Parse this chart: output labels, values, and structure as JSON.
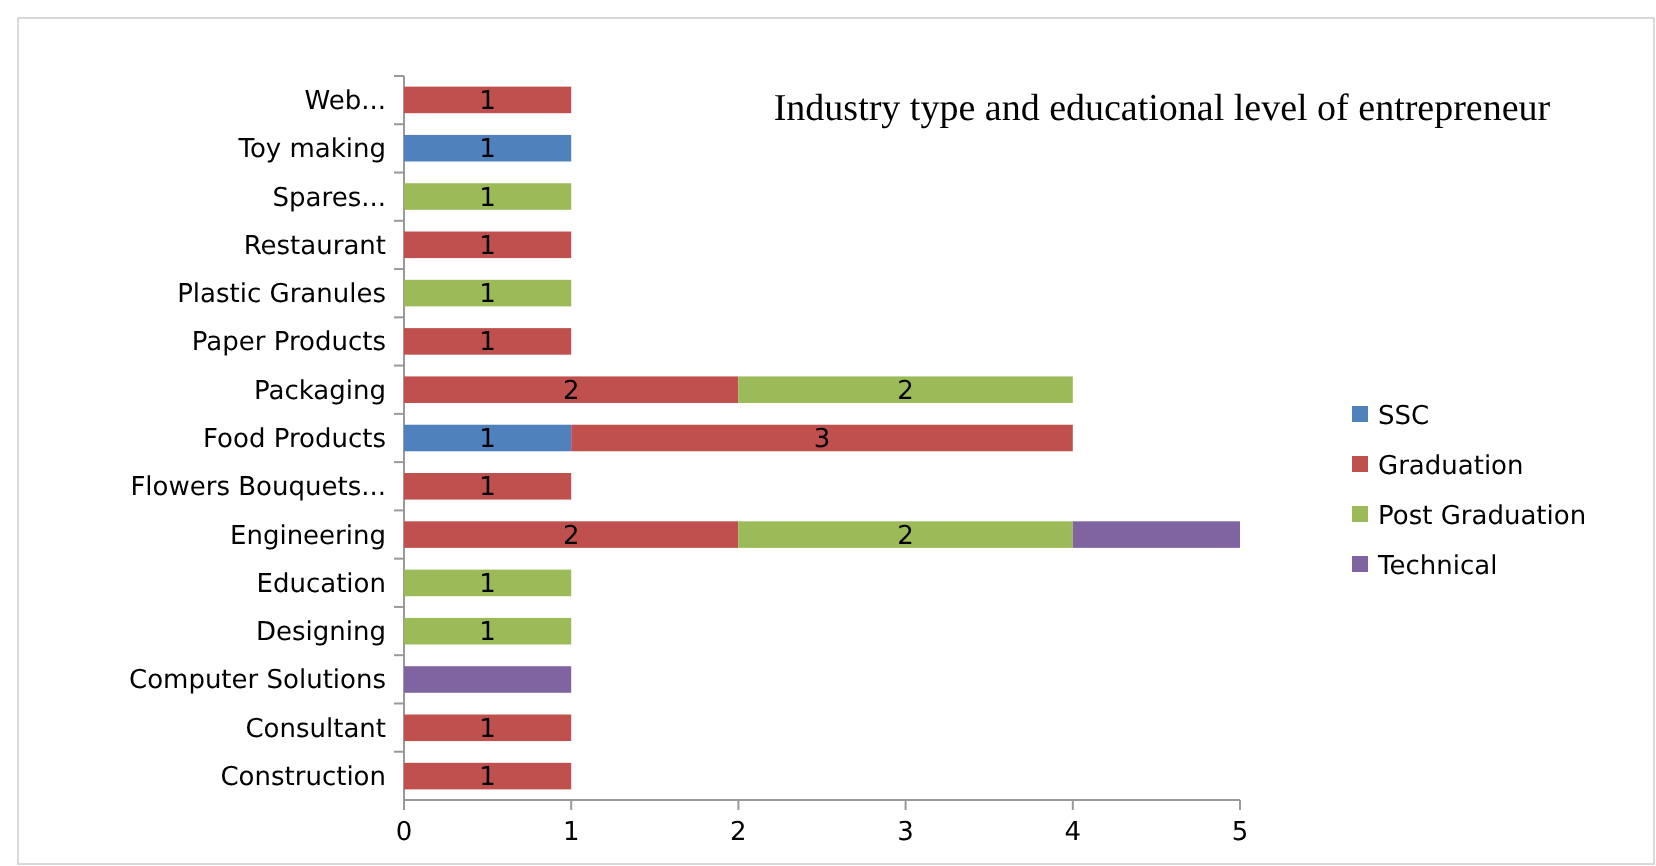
{
  "chart_data": {
    "type": "bar",
    "orientation": "horizontal",
    "stacked": true,
    "title": "Industry type and educational level of entrepreneur",
    "categories": [
      "Web...",
      "Toy making",
      "Spares...",
      "Restaurant",
      "Plastic Granules",
      "Paper Products",
      "Packaging",
      "Food Products",
      "Flowers Bouquets...",
      "Engineering",
      "Education",
      "Designing",
      "Computer Solutions",
      "Consultant",
      "Construction"
    ],
    "series": [
      {
        "name": "SSC",
        "color": "#4f81bd",
        "values": [
          null,
          1,
          null,
          null,
          null,
          null,
          null,
          1,
          null,
          null,
          null,
          null,
          null,
          null,
          null
        ],
        "value_labels": [
          null,
          "1",
          null,
          null,
          null,
          null,
          null,
          "1",
          null,
          null,
          null,
          null,
          null,
          null,
          null
        ]
      },
      {
        "name": "Graduation",
        "color": "#c0504d",
        "values": [
          1,
          null,
          null,
          1,
          null,
          1,
          2,
          3,
          1,
          2,
          null,
          null,
          null,
          1,
          1
        ],
        "value_labels": [
          "1",
          null,
          null,
          "1",
          null,
          "1",
          "2",
          "3",
          "1",
          "2",
          null,
          null,
          null,
          "1",
          "1"
        ]
      },
      {
        "name": "Post Graduation",
        "color": "#9bbb59",
        "values": [
          null,
          null,
          1,
          null,
          1,
          null,
          2,
          null,
          null,
          2,
          1,
          1,
          null,
          null,
          null
        ],
        "value_labels": [
          null,
          null,
          "1",
          null,
          "1",
          null,
          "2",
          null,
          null,
          "2",
          "1",
          "1",
          null,
          null,
          null
        ]
      },
      {
        "name": "Technical",
        "color": "#8064a2",
        "values": [
          null,
          null,
          null,
          null,
          null,
          null,
          null,
          null,
          null,
          1,
          null,
          null,
          1,
          null,
          null
        ],
        "value_labels": [
          null,
          null,
          null,
          null,
          null,
          null,
          null,
          null,
          null,
          null,
          null,
          null,
          null,
          null,
          null
        ]
      }
    ],
    "xlim": [
      0,
      5
    ],
    "xticks": [
      0,
      1,
      2,
      3,
      4,
      5
    ],
    "grid": false,
    "legend": "right"
  }
}
